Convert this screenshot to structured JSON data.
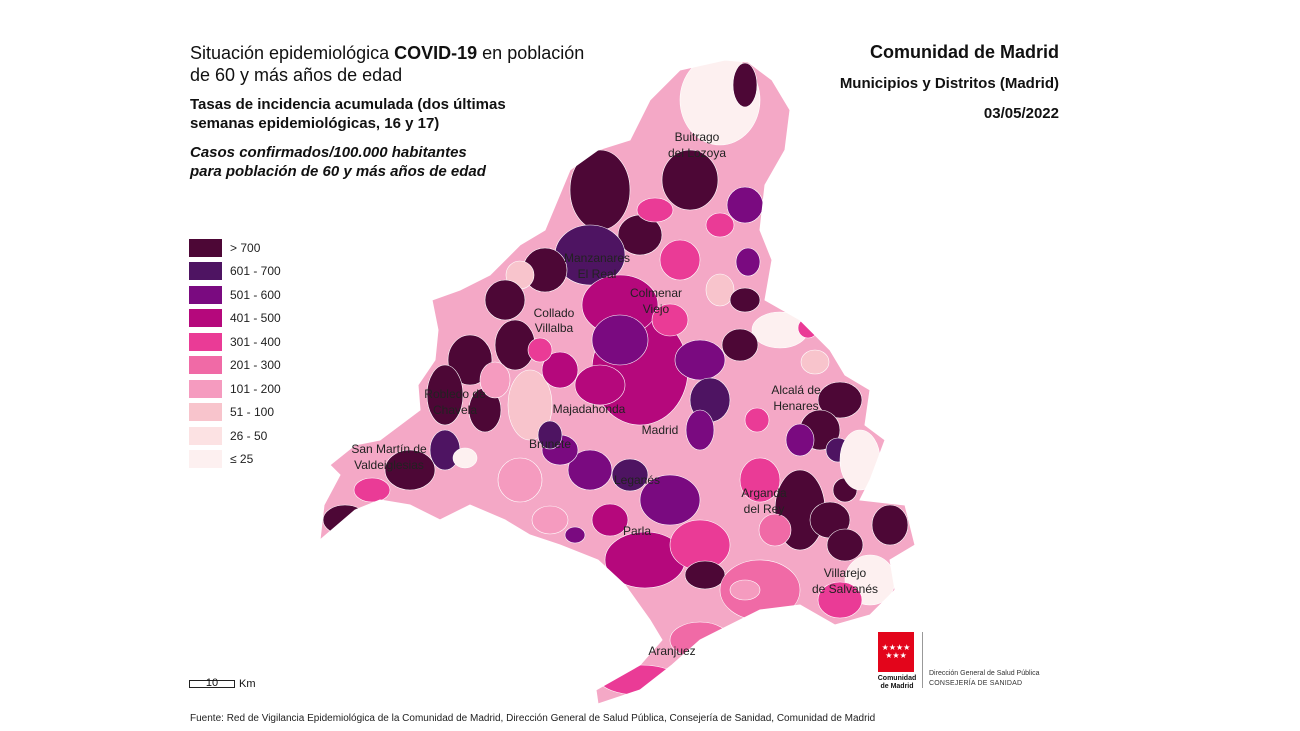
{
  "title": {
    "line1_a": "Situación epidemiológica ",
    "line1_b": "COVID-19",
    "line1_c": " en población",
    "line2": "de 60 y más años de edad"
  },
  "subtitle": {
    "line1": "Tasas de incidencia acumulada (dos últimas",
    "line2": "semanas epidemiológicas, 16 y 17)"
  },
  "subtitle2": {
    "line1": "Casos confirmados/100.000 habitantes",
    "line2": "para población de 60 y más años de edad"
  },
  "region": "Comunidad de Madrid",
  "scope": "Municipios y Distritos (Madrid)",
  "date": "03/05/2022",
  "legend": [
    {
      "label": "> 700",
      "color": "#4d0736"
    },
    {
      "label": "601 - 700",
      "color": "#4e1462"
    },
    {
      "label": "501 - 600",
      "color": "#7a0a80"
    },
    {
      "label": "401 - 500",
      "color": "#b5087c"
    },
    {
      "label": "301 - 400",
      "color": "#ea3b96"
    },
    {
      "label": "201 - 300",
      "color": "#f06aa6"
    },
    {
      "label": "101 - 200",
      "color": "#f59bbf"
    },
    {
      "label": "51 - 100",
      "color": "#f8c4cc"
    },
    {
      "label": "26 - 50",
      "color": "#fce2e3"
    },
    {
      "label": "≤ 25",
      "color": "#fdf0f0"
    }
  ],
  "places": {
    "buitrago_1": "Buitrago",
    "buitrago_2": "del Lozoya",
    "manzanares_1": "Manzanares",
    "manzanares_2": "El Real",
    "colmenar_1": "Colmenar",
    "colmenar_2": "Viejo",
    "collado_1": "Collado",
    "collado_2": "Villalba",
    "robledo_1": "Robledo de",
    "robledo_2": "Chavela",
    "majadahonda": "Majadahonda",
    "alcala_1": "Alcalá de",
    "alcala_2": "Henares",
    "sanmartin_1": "San Martín de",
    "sanmartin_2": "Valdeiglesias",
    "brunete": "Brunete",
    "madrid": "Madrid",
    "leganes": "Leganés",
    "arganda_1": "Arganda",
    "arganda_2": "del Rey",
    "parla": "Parla",
    "villarejo_1": "Villarejo",
    "villarejo_2": "de Salvanés",
    "aranjuez": "Aranjuez"
  },
  "scale": {
    "value": "10",
    "unit": "Km"
  },
  "logo": {
    "name_1": "Comunidad",
    "name_2": "de Madrid",
    "dept_1": "Dirección General de Salud Pública",
    "dept_2": "CONSEJERÍA DE SANIDAD",
    "stars": "★★★★ ★★★"
  },
  "source": "Fuente: Red de Vigilancia Epidemiológica de la Comunidad de Madrid, Dirección General de Salud Pública, Consejería de Sanidad, Comunidad de Madrid"
}
